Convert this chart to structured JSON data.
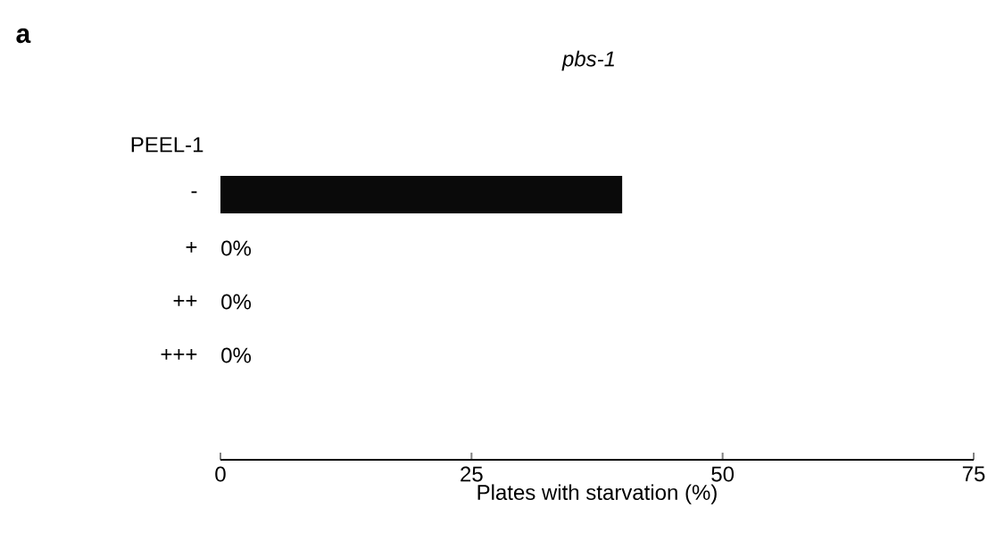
{
  "chart_data": {
    "type": "bar",
    "orientation": "horizontal",
    "title": "pbs-1",
    "xlabel": "Plates with starvation (%)",
    "ylabel": "PEEL-1",
    "annotations": [
      "a"
    ],
    "categories": [
      "-",
      "+",
      "++",
      "+++"
    ],
    "values": [
      40,
      0,
      0,
      0
    ],
    "value_labels": [
      null,
      "0%",
      "0%",
      "0%"
    ],
    "color": "#0a0a0a",
    "xlim": [
      0,
      75
    ],
    "xticks": [
      0,
      25,
      50,
      75
    ],
    "grid": false
  }
}
